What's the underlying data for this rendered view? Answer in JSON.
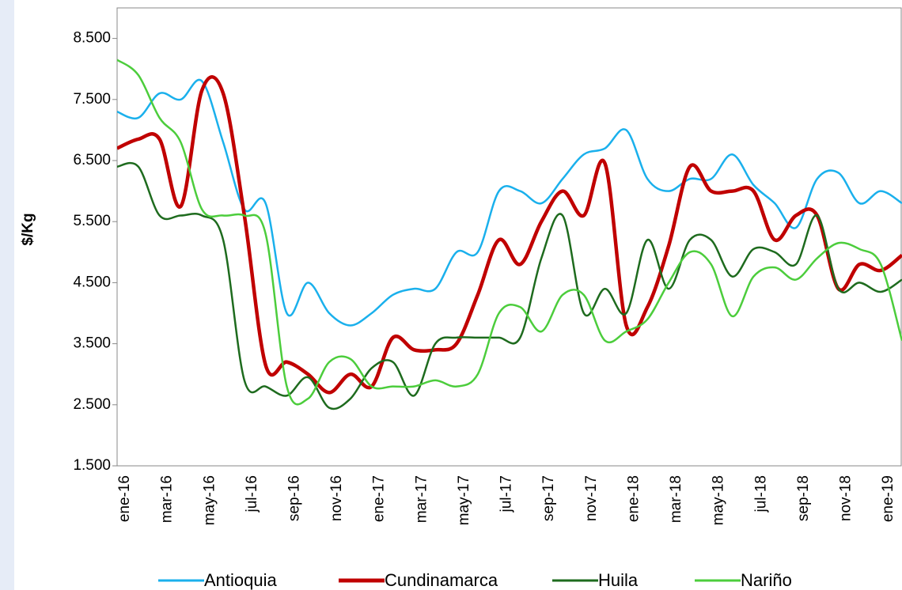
{
  "chart_data": {
    "type": "line",
    "y_label": "$/Kg",
    "categories": [
      "ene-16",
      null,
      "mar-16",
      null,
      "may-16",
      null,
      "jul-16",
      null,
      "sep-16",
      null,
      "nov-16",
      null,
      "ene-17",
      null,
      "mar-17",
      null,
      "may-17",
      null,
      "jul-17",
      null,
      "sep-17",
      null,
      "nov-17",
      null,
      "ene-18",
      null,
      "mar-18",
      null,
      "may-18",
      null,
      "jul-18",
      null,
      "sep-18",
      null,
      "nov-18",
      null,
      "ene-19",
      null
    ],
    "series": [
      {
        "name": "Antioquia",
        "color": "#1ab0ec",
        "values": [
          7300,
          7200,
          7600,
          7500,
          7800,
          6800,
          5700,
          5800,
          4000,
          4500,
          4000,
          3800,
          4000,
          4300,
          4400,
          4400,
          5000,
          5000,
          6000,
          6000,
          5800,
          6200,
          6600,
          6700,
          7000,
          6200,
          6000,
          6200,
          6200,
          6600,
          6100,
          5800,
          5400,
          6200,
          6300,
          5800,
          6000,
          5800
        ]
      },
      {
        "name": "Cundinamarca",
        "color": "#c00000",
        "values": [
          6700,
          6850,
          6850,
          5750,
          7650,
          7600,
          5600,
          3150,
          3200,
          3000,
          2700,
          3000,
          2800,
          3600,
          3400,
          3400,
          3500,
          4300,
          5200,
          4800,
          5500,
          6000,
          5600,
          6450,
          3800,
          4100,
          5100,
          6400,
          6000,
          6000,
          6000,
          5200,
          5600,
          5600,
          4400,
          4800,
          4700,
          4950
        ]
      },
      {
        "name": "Huila",
        "color": "#1e6b1e",
        "values": [
          6400,
          6400,
          5600,
          5600,
          5600,
          5200,
          2900,
          2800,
          2650,
          2950,
          2450,
          2600,
          3100,
          3200,
          2650,
          3500,
          3600,
          3600,
          3600,
          3600,
          4900,
          5600,
          4000,
          4400,
          4000,
          5200,
          4400,
          5200,
          5200,
          4600,
          5050,
          5000,
          4800,
          5600,
          4400,
          4500,
          4350,
          4550
        ]
      },
      {
        "name": "Nariño",
        "color": "#4ccd3c",
        "values": [
          8150,
          7900,
          7200,
          6800,
          5700,
          5600,
          5600,
          5300,
          2800,
          2600,
          3200,
          3250,
          2800,
          2800,
          2800,
          2900,
          2800,
          3000,
          4000,
          4100,
          3700,
          4300,
          4300,
          3550,
          3700,
          3900,
          4500,
          5000,
          4800,
          3950,
          4600,
          4750,
          4550,
          4900,
          5150,
          5050,
          4800,
          3550
        ]
      }
    ],
    "ylim": [
      1500,
      9000
    ],
    "yticks": [
      {
        "value": 1500,
        "label": "1.500"
      },
      {
        "value": 2500,
        "label": "2.500"
      },
      {
        "value": 3500,
        "label": "3.500"
      },
      {
        "value": 4500,
        "label": "4.500"
      },
      {
        "value": 5500,
        "label": "5.500"
      },
      {
        "value": 6500,
        "label": "6.500"
      },
      {
        "value": 7500,
        "label": "7.500"
      },
      {
        "value": 8500,
        "label": "8.500"
      }
    ],
    "legend": "bottom"
  }
}
